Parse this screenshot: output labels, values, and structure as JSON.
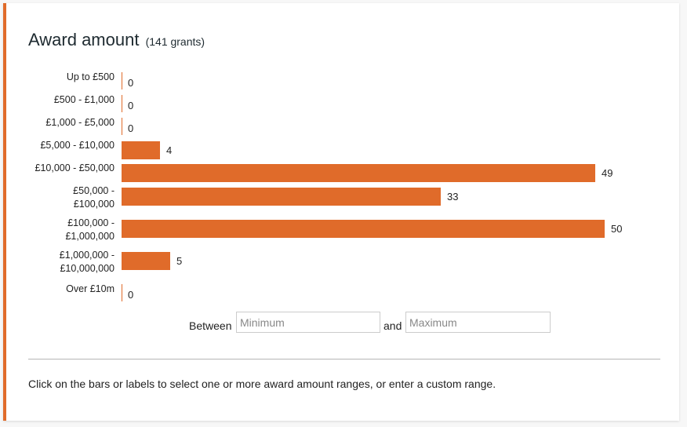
{
  "panel": {
    "title": "Award amount",
    "count_text": "(141 grants)",
    "accent_color": "#e06b2a"
  },
  "chart_data": {
    "type": "bar",
    "orientation": "horizontal",
    "title": "Award amount",
    "subtitle": "(141 grants)",
    "categories": [
      "Up to £500",
      "£500 - £1,000",
      "£1,000 - £5,000",
      "£5,000 - £10,000",
      "£10,000 - £50,000",
      "£50,000 - £100,000",
      "£100,000 - £1,000,000",
      "£1,000,000 - £10,000,000",
      "Over £10m"
    ],
    "values": [
      0,
      0,
      0,
      4,
      49,
      33,
      50,
      5,
      0
    ],
    "xlabel": "",
    "ylabel": "",
    "grid": false,
    "legend": null,
    "bar_color": "#e06b2a"
  },
  "rows": [
    {
      "line1": "Up to £500",
      "line2": "",
      "value": "0"
    },
    {
      "line1": "£500 - £1,000",
      "line2": "",
      "value": "0"
    },
    {
      "line1": "£1,000 - £5,000",
      "line2": "",
      "value": "0"
    },
    {
      "line1": "£5,000 - £10,000",
      "line2": "",
      "value": "4"
    },
    {
      "line1": "£10,000 - £50,000",
      "line2": "",
      "value": "49"
    },
    {
      "line1": "£50,000 -",
      "line2": "£100,000",
      "value": "33"
    },
    {
      "line1": "£100,000 -",
      "line2": "£1,000,000",
      "value": "50"
    },
    {
      "line1": "£1,000,000 -",
      "line2": "£10,000,000",
      "value": "5"
    },
    {
      "line1": "Over £10m",
      "line2": "",
      "value": "0"
    }
  ],
  "custom_range": {
    "between_label": "Between",
    "min_placeholder": "Minimum",
    "and_label": "and",
    "max_placeholder": "Maximum"
  },
  "help_text": "Click on the bars or labels to select one or more award amount ranges, or enter a custom range."
}
